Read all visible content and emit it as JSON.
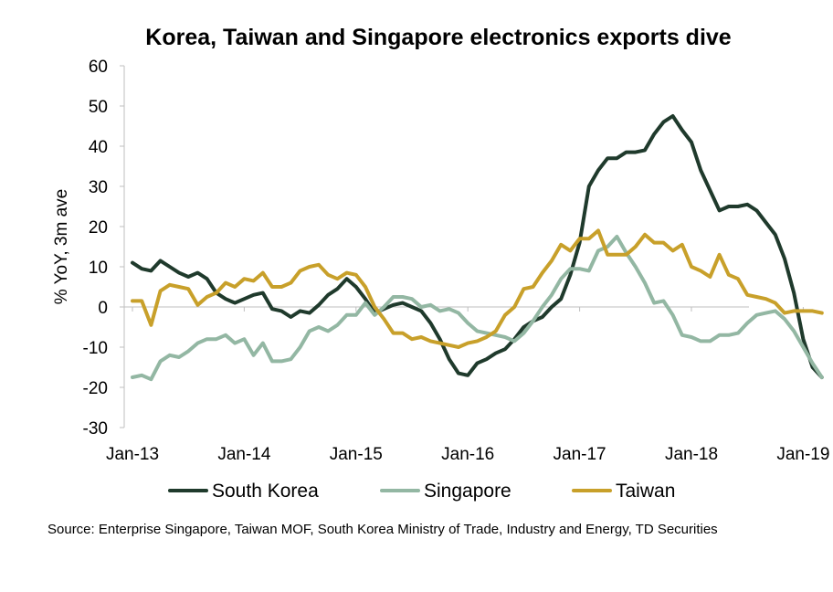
{
  "chart_data": {
    "type": "line",
    "title": "Korea, Taiwan and Singapore electronics exports dive",
    "ylabel": "% YoY, 3m ave",
    "xlabel": "",
    "ylim": [
      -30,
      60
    ],
    "yticks": [
      -30,
      -20,
      -10,
      0,
      10,
      20,
      30,
      40,
      50,
      60
    ],
    "x_tick_labels": [
      "Jan-13",
      "Jan-14",
      "Jan-15",
      "Jan-16",
      "Jan-17",
      "Jan-18",
      "Jan-19"
    ],
    "x_start": "Jan-13",
    "x_frequency": "monthly",
    "grid": false,
    "legend_position": "bottom",
    "source": "Source: Enterprise Singapore, Taiwan MOF, South Korea  Ministry of Trade, Industry and Energy, TD Securities",
    "series": [
      {
        "name": "South Korea",
        "color": "#1f3a2c",
        "values": [
          11,
          9.5,
          9,
          11.5,
          10,
          8.5,
          7.5,
          8.5,
          7,
          3.5,
          2,
          1,
          2,
          3,
          3.5,
          -0.5,
          -1,
          -2.5,
          -1,
          -1.5,
          0.5,
          3,
          4.5,
          7,
          5,
          2,
          -1.5,
          -0.5,
          0.5,
          1,
          0,
          -1,
          -4,
          -8,
          -13,
          -16.5,
          -17,
          -14,
          -13,
          -11.5,
          -10.5,
          -8,
          -5,
          -3.5,
          -2.5,
          0,
          2,
          8,
          16,
          30,
          34,
          37,
          37,
          38.5,
          38.5,
          39,
          43,
          46,
          47.5,
          44,
          41,
          34,
          29,
          24,
          25,
          25,
          25.5,
          24,
          21,
          18,
          12,
          3.5,
          -8,
          -15,
          -17.5
        ]
      },
      {
        "name": "Singapore",
        "color": "#93b7a3",
        "values": [
          -17.5,
          -17,
          -18,
          -13.5,
          -12,
          -12.5,
          -11,
          -9,
          -8,
          -8,
          -7,
          -9,
          -8,
          -12,
          -9,
          -13.5,
          -13.5,
          -13,
          -10,
          -6,
          -5,
          -6,
          -4.5,
          -2,
          -2,
          1,
          -2,
          0,
          2.5,
          2.5,
          2,
          0,
          0.5,
          -1,
          -0.5,
          -1.5,
          -4,
          -6,
          -6.5,
          -7,
          -7.5,
          -8.5,
          -6.5,
          -3.5,
          0,
          3,
          7,
          9.5,
          9.5,
          9,
          14,
          15,
          17.5,
          13.5,
          10,
          6,
          1,
          1.5,
          -2,
          -7,
          -7.5,
          -8.5,
          -8.5,
          -7,
          -7,
          -6.5,
          -4,
          -2,
          -1.5,
          -1,
          -3,
          -6,
          -10,
          -14,
          -17.5
        ]
      },
      {
        "name": "Taiwan",
        "color": "#c8a02a",
        "values": [
          1.5,
          1.5,
          -4.5,
          4,
          5.5,
          5,
          4.5,
          0.5,
          2.5,
          3.5,
          6,
          5,
          7,
          6.5,
          8.5,
          5,
          5,
          6,
          9,
          10,
          10.5,
          8,
          7,
          8.5,
          8,
          5,
          0,
          -3,
          -6.5,
          -6.5,
          -8,
          -7.5,
          -8.5,
          -9,
          -9.5,
          -10,
          -9,
          -8.5,
          -7.5,
          -6,
          -2,
          0,
          4.5,
          5,
          8.5,
          11.5,
          15.5,
          14,
          17,
          17,
          19,
          13,
          13,
          13,
          15,
          18,
          16,
          16,
          14,
          15.5,
          10,
          9,
          7.5,
          13,
          8,
          7,
          3,
          2.5,
          2,
          1,
          -1.5,
          -1,
          -1,
          -1,
          -1.5
        ]
      }
    ]
  }
}
